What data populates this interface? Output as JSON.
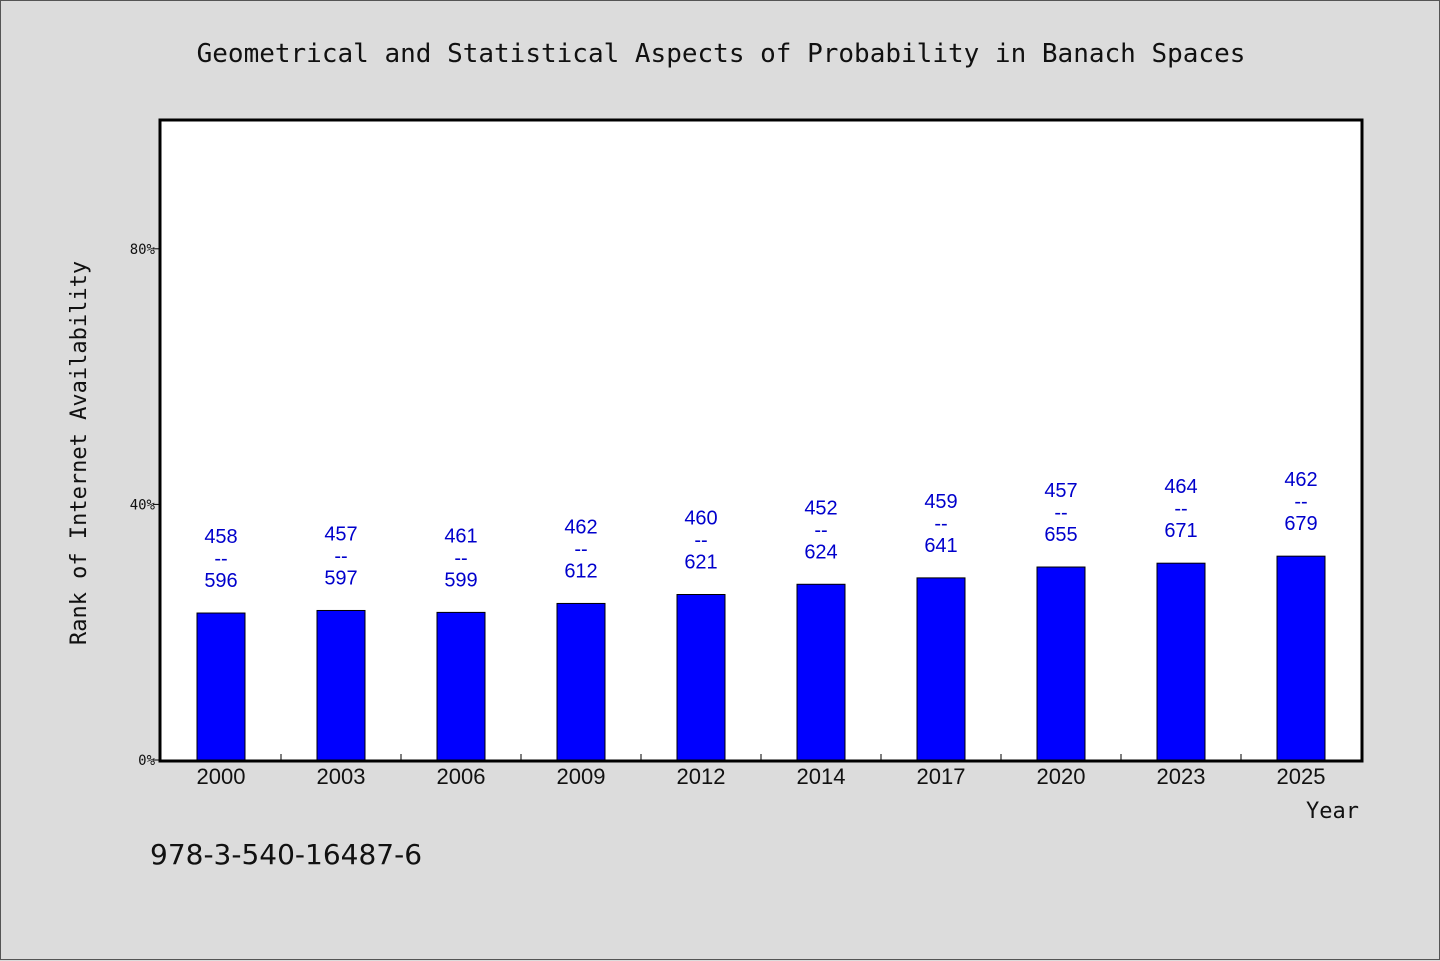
{
  "chart_data": {
    "type": "bar",
    "title": "Geometrical and Statistical Aspects of Probability in Banach Spaces",
    "xlabel": "Year",
    "ylabel": "Rank of Internet Availability",
    "categories": [
      "2000",
      "2003",
      "2006",
      "2009",
      "2012",
      "2014",
      "2017",
      "2020",
      "2023",
      "2025"
    ],
    "values": [
      23.0,
      23.4,
      23.1,
      24.5,
      25.9,
      27.5,
      28.5,
      30.2,
      30.8,
      31.9
    ],
    "ylim": [
      0,
      100
    ],
    "yticks": [
      0,
      40,
      80
    ],
    "ytick_labels": [
      "0%",
      "40%",
      "80%"
    ],
    "data_labels": [
      [
        "458",
        "--",
        "596"
      ],
      [
        "457",
        "--",
        "597"
      ],
      [
        "461",
        "--",
        "599"
      ],
      [
        "462",
        "--",
        "612"
      ],
      [
        "460",
        "--",
        "621"
      ],
      [
        "452",
        "--",
        "624"
      ],
      [
        "459",
        "--",
        "641"
      ],
      [
        "457",
        "--",
        "655"
      ],
      [
        "464",
        "--",
        "671"
      ],
      [
        "462",
        "--",
        "679"
      ]
    ],
    "bar_color": "#0000ff",
    "label_color": "#0000cc",
    "grid": false,
    "legend": "none"
  },
  "footer": {
    "isbn": "978-3-540-16487-6"
  }
}
